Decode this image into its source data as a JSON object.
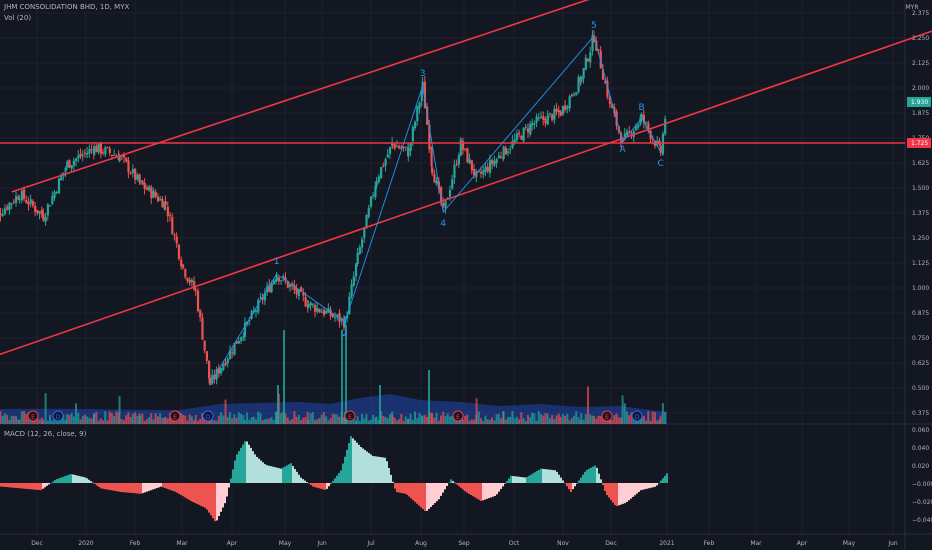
{
  "header": {
    "symbol_line": "JHM CONSOLIDATION BHD, 1D, MYX",
    "volume_label": "Vol (20)",
    "currency": "MYR"
  },
  "macd": {
    "label": "MACD (12, 26, close, 9)",
    "axis_ticks": [
      "0.060",
      "0.040",
      "0.020",
      "−0.000",
      "−0.020",
      "−0.040"
    ]
  },
  "price_axis": {
    "ticks": [
      "2.375",
      "2.250",
      "2.125",
      "2.000",
      "1.875",
      "1.750",
      "1.625",
      "1.500",
      "1.375",
      "1.250",
      "1.125",
      "1.000",
      "0.875",
      "0.750",
      "0.625",
      "0.500",
      "0.375"
    ],
    "last_price": "1.930",
    "level_price": "1.725"
  },
  "time_axis": [
    "Dec",
    "2020",
    "Feb",
    "Mar",
    "Apr",
    "May",
    "Jun",
    "Jul",
    "Aug",
    "Sep",
    "Oct",
    "Nov",
    "Dec",
    "2021",
    "Feb",
    "Mar",
    "Apr",
    "May",
    "Jun"
  ],
  "wave_labels": [
    "1",
    "2",
    "3",
    "4",
    "5",
    "A",
    "B",
    "C"
  ],
  "event_markers": [
    "E",
    "D",
    "E",
    "D",
    "E",
    "E",
    "E",
    "D"
  ],
  "colors": {
    "background": "#131722",
    "up": "#26a69a",
    "down": "#ef5350",
    "trendline": "#f23645",
    "wave": "#2196f3",
    "last_price_badge": "#26a69a",
    "level_badge": "#f23645"
  },
  "chart_data": {
    "type": "candlestick",
    "title": "JHM CONSOLIDATION BHD, 1D, MYX",
    "price_range": [
      0.33,
      2.45
    ],
    "trendlines": [
      {
        "name": "upper-channel",
        "from": [
          "2019-11-15",
          1.48
        ],
        "to": [
          "2021-06-30",
          3.05
        ]
      },
      {
        "name": "lower-channel",
        "from": [
          "2019-11-01",
          0.65
        ],
        "to": [
          "2021-06-30",
          2.32
        ]
      },
      {
        "name": "support-level",
        "value": 1.725
      }
    ],
    "elliott_wave": [
      {
        "label": "",
        "date": "2020-03-19",
        "price": 0.52
      },
      {
        "label": "1",
        "date": "2020-04-30",
        "price": 1.07
      },
      {
        "label": "2",
        "date": "2020-06-12",
        "price": 0.83
      },
      {
        "label": "3",
        "date": "2020-07-31",
        "price": 2.01
      },
      {
        "label": "4",
        "date": "2020-08-13",
        "price": 1.38
      },
      {
        "label": "5",
        "date": "2020-11-16",
        "price": 2.26
      },
      {
        "label": "A",
        "date": "2020-12-04",
        "price": 1.73
      },
      {
        "label": "B",
        "date": "2020-12-16",
        "price": 1.85
      },
      {
        "label": "C",
        "date": "2020-12-28",
        "price": 1.68
      }
    ],
    "last_close": 1.93,
    "macd_range": [
      -0.048,
      0.062
    ]
  }
}
